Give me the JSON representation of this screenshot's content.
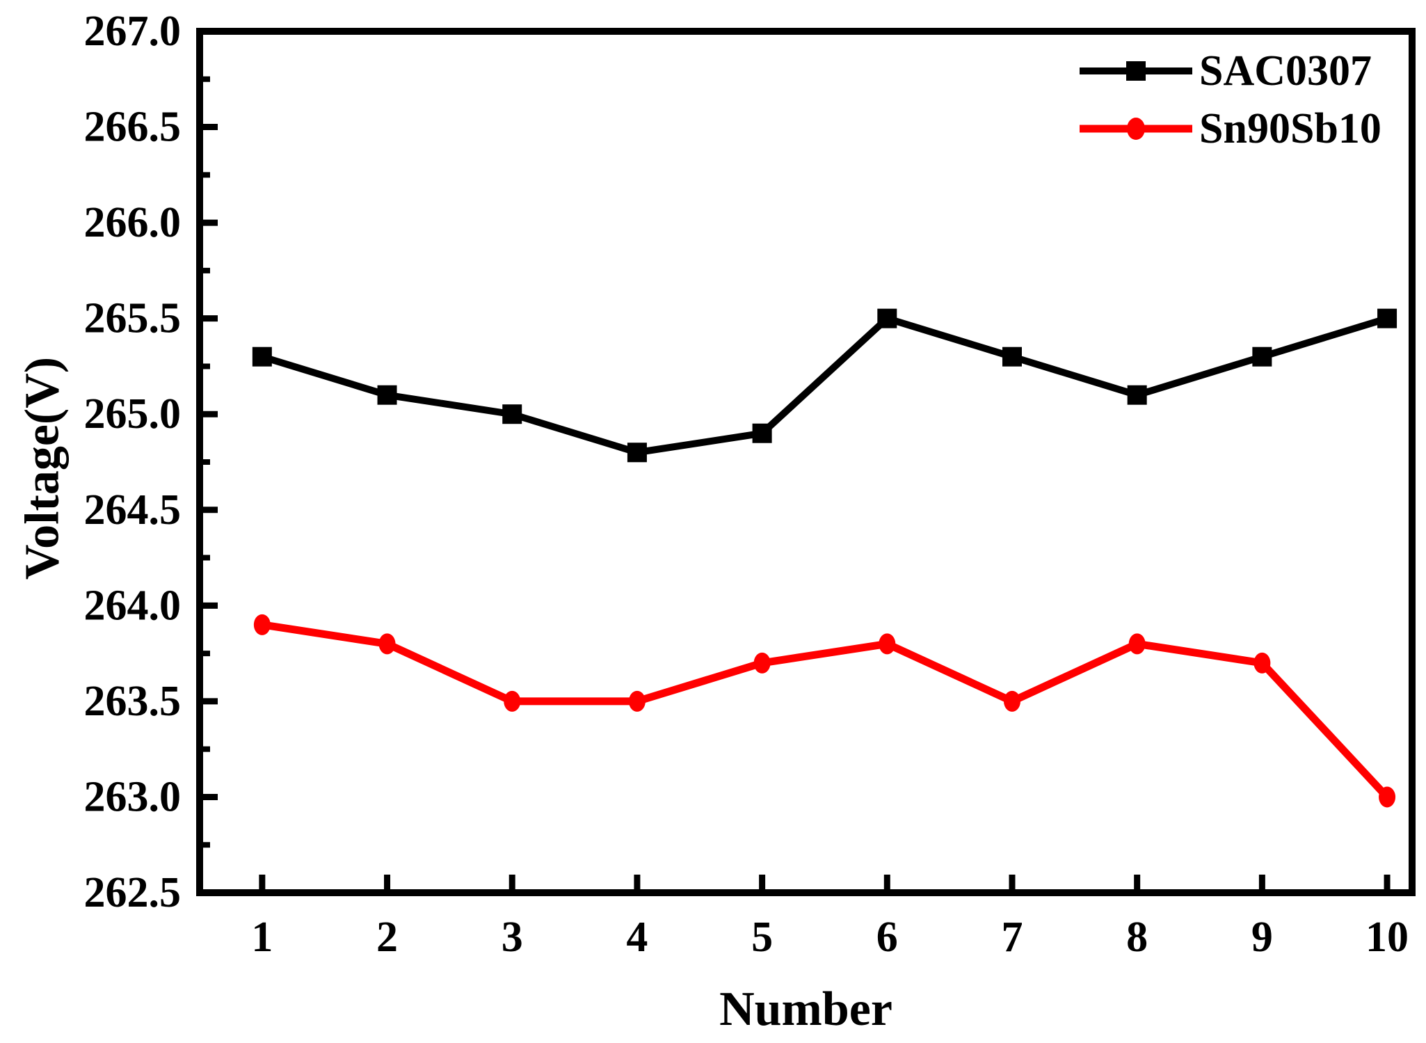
{
  "figure": {
    "background": "#ffffff",
    "frame_color": "#000000"
  },
  "chart_data": {
    "type": "line",
    "title": "",
    "xlabel": "Number",
    "ylabel": "Voltage(V)",
    "x": [
      1,
      2,
      3,
      4,
      5,
      6,
      7,
      8,
      9,
      10
    ],
    "series": [
      {
        "name": "SAC0307",
        "color": "#000000",
        "marker": "square",
        "values": [
          265.3,
          265.1,
          265.0,
          264.8,
          264.9,
          265.5,
          265.3,
          265.1,
          265.3,
          265.5
        ]
      },
      {
        "name": "Sn90Sb10",
        "color": "#ff0000",
        "marker": "circle",
        "values": [
          263.9,
          263.8,
          263.5,
          263.5,
          263.7,
          263.8,
          263.5,
          263.8,
          263.7,
          263.0
        ]
      }
    ],
    "xlim": [
      0.5,
      10.2
    ],
    "ylim": [
      262.5,
      267.0
    ],
    "xticks": [
      "1",
      "2",
      "3",
      "4",
      "5",
      "6",
      "7",
      "8",
      "9",
      "10"
    ],
    "yticks": [
      "267.0",
      "266.5",
      "266.0",
      "265.5",
      "265.0",
      "264.5",
      "264.0",
      "263.5",
      "263.0",
      "262.5"
    ],
    "y_minor_step": 0.25,
    "grid": false,
    "legend_position": "top-right"
  }
}
